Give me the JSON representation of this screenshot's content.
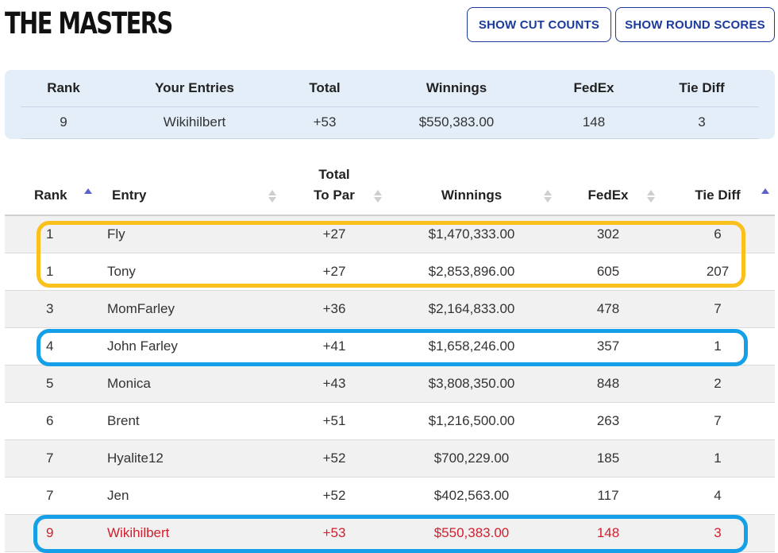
{
  "header": {
    "title": "THE MASTERS",
    "show_cut_counts": "SHOW CUT COUNTS",
    "show_round_scores": "SHOW ROUND SCORES"
  },
  "summary": {
    "headers": [
      "Rank",
      "Your Entries",
      "Total",
      "Winnings",
      "FedEx",
      "Tie Diff"
    ],
    "values": [
      "9",
      "Wikihilbert",
      "+53",
      "$550,383.00",
      "148",
      "3"
    ]
  },
  "table": {
    "headers": {
      "rank": "Rank",
      "entry": "Entry",
      "total_line1": "Total",
      "total_line2": "To Par",
      "winnings": "Winnings",
      "fedex": "FedEx",
      "tie_diff": "Tie Diff"
    },
    "rows": [
      {
        "rank": "1",
        "entry": "Fly",
        "total": "+27",
        "winnings": "$1,470,333.00",
        "fedex": "302",
        "tie": "6"
      },
      {
        "rank": "1",
        "entry": "Tony",
        "total": "+27",
        "winnings": "$2,853,896.00",
        "fedex": "605",
        "tie": "207"
      },
      {
        "rank": "3",
        "entry": "MomFarley",
        "total": "+36",
        "winnings": "$2,164,833.00",
        "fedex": "478",
        "tie": "7"
      },
      {
        "rank": "4",
        "entry": "John Farley",
        "total": "+41",
        "winnings": "$1,658,246.00",
        "fedex": "357",
        "tie": "1"
      },
      {
        "rank": "5",
        "entry": "Monica",
        "total": "+43",
        "winnings": "$3,808,350.00",
        "fedex": "848",
        "tie": "2"
      },
      {
        "rank": "6",
        "entry": "Brent",
        "total": "+51",
        "winnings": "$1,216,500.00",
        "fedex": "263",
        "tie": "7"
      },
      {
        "rank": "7",
        "entry": "Hyalite12",
        "total": "+52",
        "winnings": "$700,229.00",
        "fedex": "185",
        "tie": "1"
      },
      {
        "rank": "7",
        "entry": "Jen",
        "total": "+52",
        "winnings": "$402,563.00",
        "fedex": "117",
        "tie": "4"
      },
      {
        "rank": "9",
        "entry": "Wikihilbert",
        "total": "+53",
        "winnings": "$550,383.00",
        "fedex": "148",
        "tie": "3"
      }
    ]
  },
  "colors": {
    "button_text": "#1a3a9c",
    "summary_bg": "#e3eef9",
    "highlight_yellow": "#f9c01e",
    "highlight_blue": "#159fe6",
    "current_user_red": "#d0202e",
    "sort_active": "#5b62c9"
  }
}
